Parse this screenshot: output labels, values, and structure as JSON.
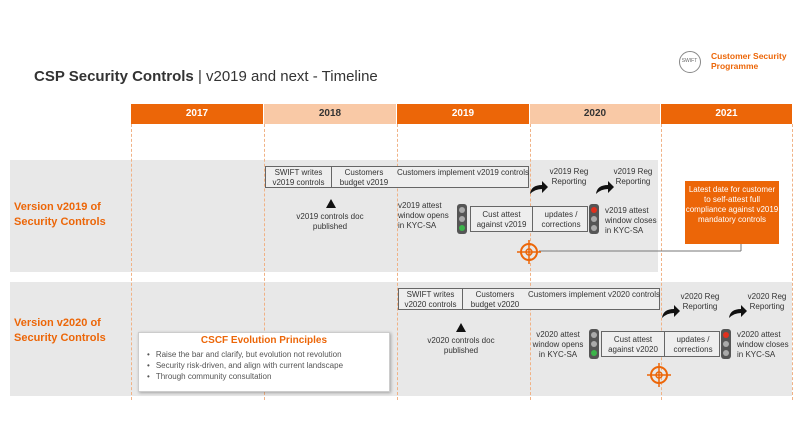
{
  "header": {
    "title_bold": "CSP Security Controls",
    "title_rest": "| v2019 and next - Timeline",
    "logo_text": "Customer Security Programme",
    "logo_mark": "SWIFT"
  },
  "years": [
    "2017",
    "2018",
    "2019",
    "2020",
    "2021"
  ],
  "v2019": {
    "label": "Version v2019 of Security Controls",
    "top_bar": [
      "SWIFT writes v2019 controls",
      "Customers budget v2019",
      "Customers implement v2019 controls"
    ],
    "reg_reporting_1": "v2019 Reg Reporting",
    "reg_reporting_2": "v2019 Reg Reporting",
    "doc_published": "v2019 controls doc published",
    "attest_opens": "v2019 attest window opens in KYC-SA",
    "attest_bar": [
      "Cust attest against v2019",
      "updates / corrections"
    ],
    "attest_closes": "v2019 attest window closes in KYC-SA",
    "latest_date": "Latest date for customer to self-attest full compliance against v2019 mandatory controls"
  },
  "v2020": {
    "label": "Version v2020 of Security Controls",
    "top_bar": [
      "SWIFT writes v2020 controls",
      "Customers budget v2020",
      "Customers implement v2020 controls"
    ],
    "reg_reporting_1": "v2020 Reg Reporting",
    "reg_reporting_2": "v2020 Reg Reporting",
    "doc_published": "v2020 controls doc published",
    "attest_opens": "v2020 attest window opens in KYC-SA",
    "attest_bar": [
      "Cust attest against v2020",
      "updates / corrections"
    ],
    "attest_closes": "v2020 attest window closes in KYC-SA"
  },
  "principles": {
    "title": "CSCF Evolution Principles",
    "items": [
      "Raise the bar and clarify, but evolution not revolution",
      "Security risk-driven, and align with current landscape",
      "Through community consultation"
    ]
  },
  "colors": {
    "accent": "#ec6608",
    "accent_light": "#f9c9a6",
    "band": "#e8e8e8"
  }
}
